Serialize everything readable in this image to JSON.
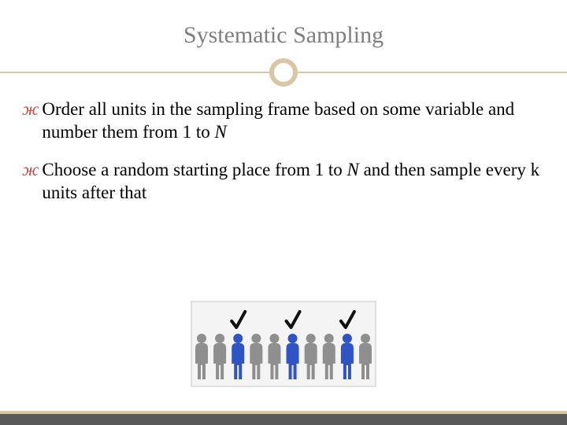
{
  "title": "Systematic Sampling",
  "bullets": [
    {
      "html": "Order all units in the sampling frame based on some variable and number them from 1 to <span class=\"ital\">N</span>"
    },
    {
      "html": "Choose a random starting place from 1 to <span class=\"ital\">N</span> and then sample every k units after that"
    }
  ],
  "colors": {
    "title_color": "#7f7f7f",
    "divider_color": "#d9c6a5",
    "bullet_marker_color": "#c0504d",
    "text_color": "#000000",
    "footer_bar": "#595959",
    "footer_accent": "#d9c6a5",
    "background": "#ffffff"
  },
  "illustration": {
    "type": "people-row",
    "count": 10,
    "selected_indices": [
      2,
      5,
      8
    ],
    "person_color_unselected": "#8f8f8f",
    "person_color_selected": "#2f55c4",
    "check_color": "#111111",
    "box_bg": "#f4f4f4",
    "box_border": "#c7c7c7"
  },
  "typography": {
    "title_fontsize": 30,
    "body_fontsize": 23,
    "font_family": "Georgia, 'Times New Roman', serif"
  }
}
